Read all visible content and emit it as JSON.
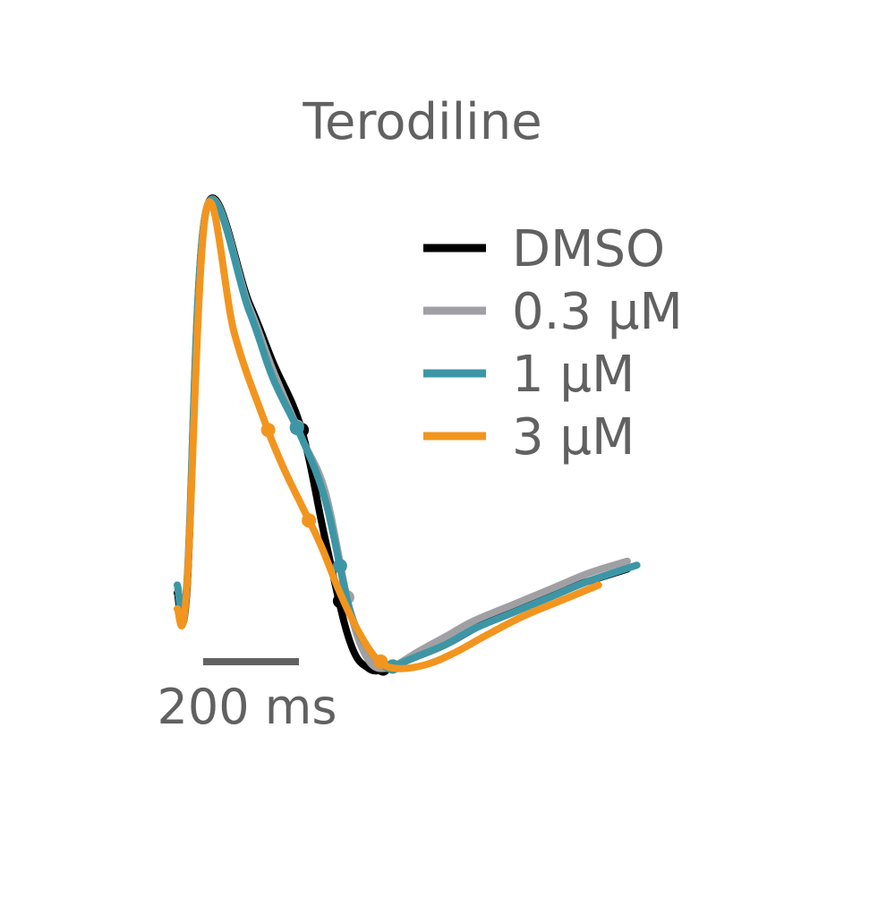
{
  "chart_data": {
    "type": "line",
    "title": "Terodiline",
    "xlabel": "",
    "ylabel": "",
    "grid": false,
    "legend_position": "top-right",
    "scale_bar": {
      "value": 200,
      "label": "200 ms"
    },
    "series": [
      {
        "name": "DMSO",
        "color": "#000000",
        "x": [
          0,
          20,
          60,
          150,
          200,
          260,
          310,
          360,
          400,
          440,
          460,
          500,
          560,
          620,
          700,
          780,
          860,
          940
        ],
        "y": [
          0.04,
          0.04,
          1.0,
          0.77,
          0.62,
          0.45,
          0.17,
          -0.08,
          -0.15,
          -0.15,
          -0.14,
          -0.12,
          -0.09,
          -0.05,
          0.0,
          0.04,
          0.07,
          0.1
        ],
        "markers_x": [
          260,
          340,
          430
        ]
      },
      {
        "name": "0.3 μM",
        "color": "#a0a0a4",
        "x": [
          0,
          20,
          60,
          150,
          200,
          260,
          310,
          360,
          400,
          440,
          460,
          500,
          560,
          620,
          700,
          780,
          860,
          940
        ],
        "y": [
          0.06,
          0.06,
          1.0,
          0.76,
          0.6,
          0.43,
          0.29,
          0.0,
          -0.13,
          -0.15,
          -0.14,
          -0.11,
          -0.07,
          -0.03,
          0.01,
          0.05,
          0.09,
          0.12
        ],
        "markers_x": [
          250,
          355,
          450
        ]
      },
      {
        "name": "1 μM",
        "color": "#3d96a5",
        "x": [
          0,
          20,
          60,
          150,
          200,
          260,
          310,
          360,
          400,
          440,
          460,
          500,
          560,
          620,
          700,
          780,
          860,
          960
        ],
        "y": [
          0.06,
          0.06,
          1.0,
          0.75,
          0.58,
          0.43,
          0.27,
          0.0,
          -0.1,
          -0.15,
          -0.14,
          -0.12,
          -0.09,
          -0.05,
          -0.01,
          0.03,
          0.07,
          0.11
        ],
        "markers_x": [
          250,
          340,
          450
        ]
      },
      {
        "name": "3 μM",
        "color": "#f2951f",
        "x": [
          0,
          20,
          60,
          120,
          180,
          220,
          260,
          300,
          340,
          380,
          420,
          460,
          520,
          580,
          640,
          720,
          800,
          880
        ],
        "y": [
          0.0,
          0.05,
          1.0,
          0.69,
          0.48,
          0.36,
          0.26,
          0.16,
          0.04,
          -0.06,
          -0.13,
          -0.15,
          -0.14,
          -0.11,
          -0.07,
          -0.02,
          0.02,
          0.06
        ],
        "markers_x": [
          190,
          275,
          425
        ]
      }
    ]
  }
}
